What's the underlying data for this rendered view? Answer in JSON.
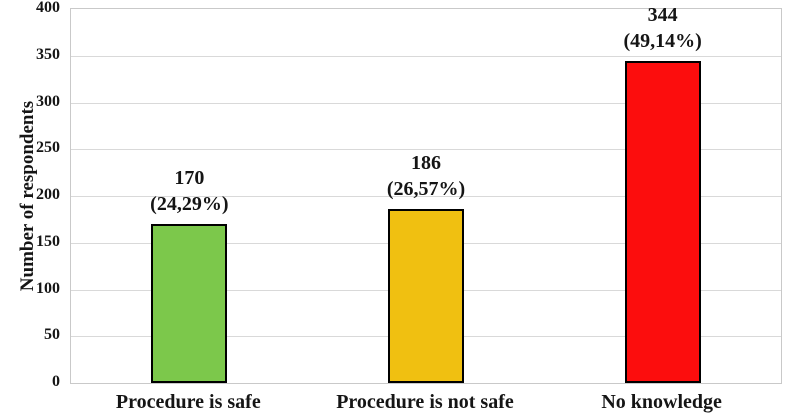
{
  "chart_data": {
    "type": "bar",
    "title": "",
    "xlabel": "",
    "ylabel": "Number of respondents",
    "categories": [
      "Procedure is safe",
      "Procedure is not safe",
      "No knowledge"
    ],
    "values": [
      170,
      186,
      344
    ],
    "value_labels": [
      [
        "170",
        "(24,29%)"
      ],
      [
        "186",
        "(26,57%)"
      ],
      [
        "344",
        "(49,14%)"
      ]
    ],
    "bar_colors": [
      "#7cc84b",
      "#f0c011",
      "#fc0d0d"
    ],
    "bar_border_color": "#000000",
    "ylim": [
      0,
      400
    ],
    "yticks": [
      0,
      50,
      100,
      150,
      200,
      250,
      300,
      350,
      400
    ],
    "grid": "horizontal",
    "gridline_color": "#d9d9d9",
    "plot_border_color": "#c9c9c9",
    "legend_position": "none",
    "background_color": "#ffffff"
  }
}
